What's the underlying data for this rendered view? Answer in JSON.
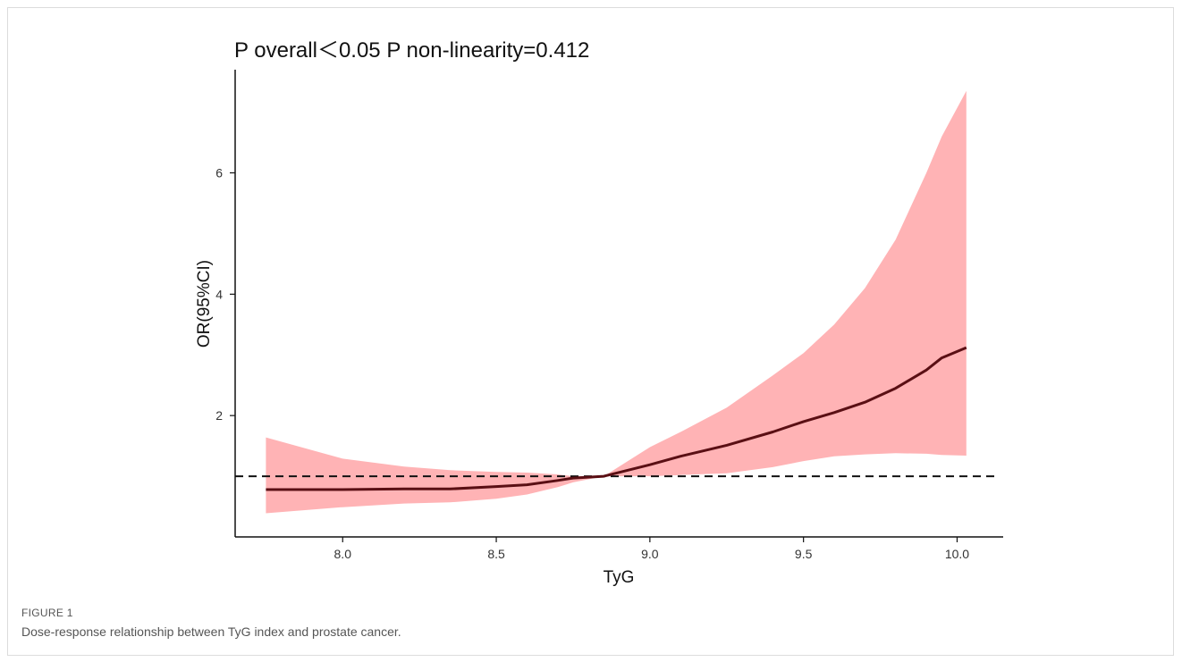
{
  "figure": {
    "label": "FIGURE 1",
    "caption": "Dose-response relationship between TyG index and prostate cancer."
  },
  "chart_data": {
    "type": "line",
    "title": "P overall＜0.05   P non-linearity=0.412",
    "xlabel": "TyG",
    "ylabel": "OR(95%CI)",
    "xlim": [
      7.65,
      10.15
    ],
    "ylim": [
      0.0,
      7.7
    ],
    "xticks": [
      8.0,
      8.5,
      9.0,
      9.5,
      10.0
    ],
    "xtick_labels": [
      "8.0",
      "8.5",
      "9.0",
      "9.5",
      "10.0"
    ],
    "yticks": [
      2,
      4,
      6
    ],
    "ytick_labels": [
      "2",
      "4",
      "6"
    ],
    "grid": false,
    "reference_line": {
      "y": 1.0,
      "style": "dashed"
    },
    "colors": {
      "line": "#5a0f14",
      "band": "#ffb3b5",
      "reference": "#111111",
      "axis": "#111111"
    },
    "series": [
      {
        "x": [
          7.75,
          8.0,
          8.2,
          8.35,
          8.5,
          8.6,
          8.7,
          8.75,
          8.85,
          9.0,
          9.1,
          9.25,
          9.4,
          9.5,
          9.6,
          9.7,
          9.8,
          9.9,
          9.95,
          10.03
        ],
        "y": [
          0.78,
          0.78,
          0.79,
          0.79,
          0.83,
          0.86,
          0.93,
          0.97,
          1.0,
          1.19,
          1.33,
          1.51,
          1.73,
          1.9,
          2.05,
          2.22,
          2.45,
          2.75,
          2.95,
          3.12
        ],
        "lower": [
          0.39,
          0.49,
          0.55,
          0.57,
          0.63,
          0.7,
          0.82,
          0.9,
          1.0,
          1.0,
          1.02,
          1.05,
          1.15,
          1.25,
          1.33,
          1.36,
          1.38,
          1.37,
          1.35,
          1.34
        ],
        "upper": [
          1.64,
          1.29,
          1.16,
          1.1,
          1.07,
          1.06,
          1.03,
          1.0,
          1.0,
          1.48,
          1.73,
          2.13,
          2.66,
          3.03,
          3.5,
          4.1,
          4.9,
          6.0,
          6.6,
          7.35
        ]
      }
    ]
  }
}
